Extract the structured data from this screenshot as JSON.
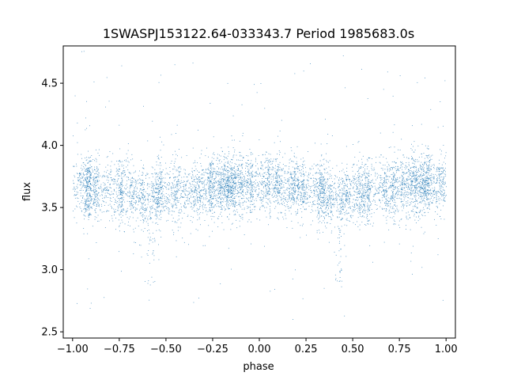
{
  "chart_data": {
    "type": "scatter",
    "title": "1SWASPJ153122.64-033343.7 Period 1985683.0s",
    "xlabel": "phase",
    "ylabel": "flux",
    "xlim": [
      -1.05,
      1.05
    ],
    "ylim": [
      2.45,
      4.8
    ],
    "x_ticks": [
      -1.0,
      -0.75,
      -0.5,
      -0.25,
      0.0,
      0.25,
      0.5,
      0.75,
      1.0
    ],
    "x_tick_labels": [
      "−1.00",
      "−0.75",
      "−0.50",
      "−0.25",
      "0.00",
      "0.25",
      "0.50",
      "0.75",
      "1.00"
    ],
    "y_ticks": [
      2.5,
      3.0,
      3.5,
      4.0,
      4.5
    ],
    "y_tick_labels": [
      "2.5",
      "3.0",
      "3.5",
      "4.0",
      "4.5"
    ],
    "grid": false,
    "legend": "none",
    "marker_color": "#1f77b4",
    "series": [
      {
        "phase_range": [
          -1.0,
          1.0
        ],
        "baseline_flux_profile": [
          {
            "phase": -1.0,
            "flux": 3.68
          },
          {
            "phase": -0.75,
            "flux": 3.63
          },
          {
            "phase": -0.6,
            "flux": 3.58
          },
          {
            "phase": -0.5,
            "flux": 3.62
          },
          {
            "phase": -0.25,
            "flux": 3.66
          },
          {
            "phase": 0.0,
            "flux": 3.7
          },
          {
            "phase": 0.25,
            "flux": 3.66
          },
          {
            "phase": 0.4,
            "flux": 3.58
          },
          {
            "phase": 0.5,
            "flux": 3.62
          },
          {
            "phase": 0.75,
            "flux": 3.67
          },
          {
            "phase": 1.0,
            "flux": 3.7
          }
        ],
        "core_scatter": 0.12,
        "outlier_range": [
          2.55,
          4.78
        ],
        "eclipse_dips": [
          {
            "phase": -0.58,
            "min_flux": 2.85
          },
          {
            "phase": 0.42,
            "min_flux": 2.85
          }
        ]
      }
    ]
  }
}
